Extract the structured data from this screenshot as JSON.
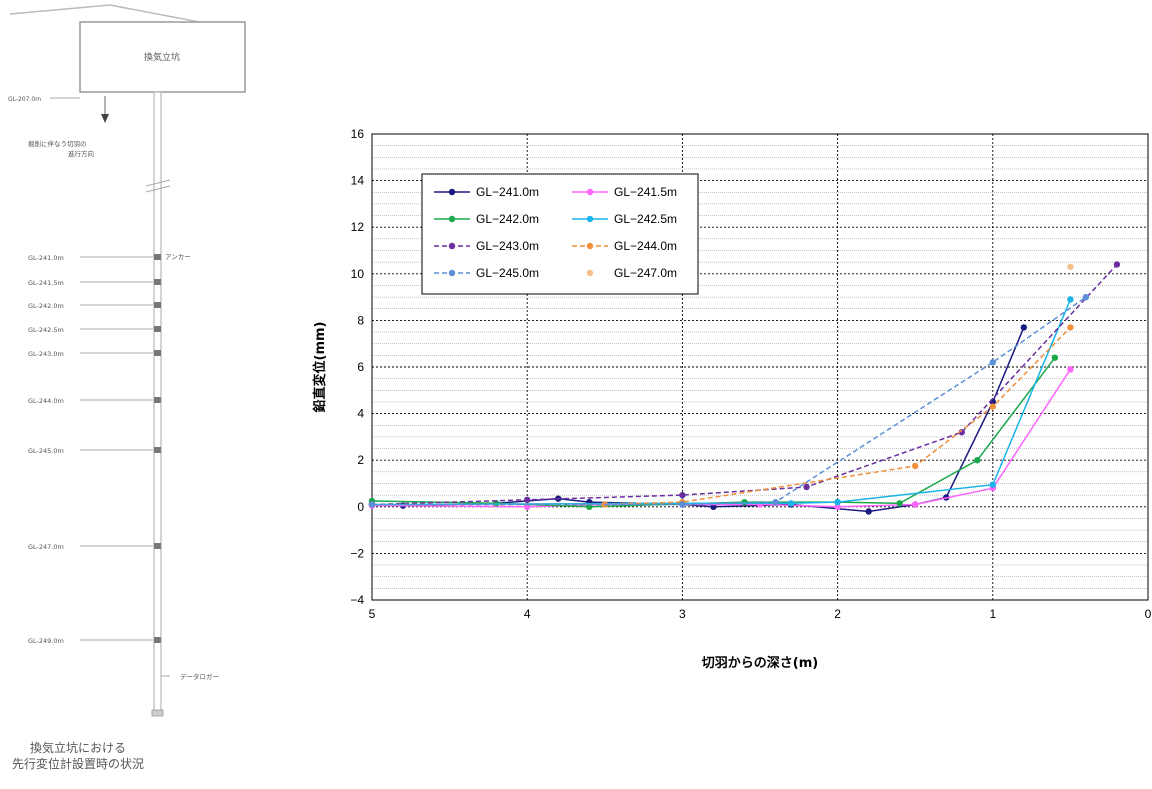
{
  "diagram": {
    "shaft_label": "換気立坑",
    "gl_top_label": "GL-207.0m",
    "direction_label_line1": "掘削に伴なう切羽の",
    "direction_label_line2": "進行方向",
    "anchor_label": "アンカー",
    "logger_label": "データロガー",
    "depth_labels": [
      "GL-241.0m",
      "GL-241.5m",
      "GL-242.0m",
      "GL-242.5m",
      "GL-243.0m",
      "GL-244.0m",
      "GL-245.0m",
      "GL-247.0m",
      "GL-249.0m"
    ],
    "caption_line1": "換気立坑における",
    "caption_line2": "先行変位計設置時の状況"
  },
  "chart_data": {
    "type": "line",
    "title": "",
    "xlabel": "切羽からの深さ(m)",
    "ylabel": "鉛直変位(mm)",
    "xlim": [
      5,
      0
    ],
    "ylim": [
      -4,
      16
    ],
    "x_ticks": [
      "5",
      "4",
      "3",
      "2",
      "1",
      "0"
    ],
    "y_ticks": [
      "16",
      "14",
      "12",
      "10",
      "8",
      "6",
      "4",
      "2",
      "0",
      "−2",
      "−4"
    ],
    "grid": true,
    "legend_position": "top-left",
    "series": [
      {
        "name": "GL−241.0m",
        "color": "#1a1a80",
        "dash": "solid",
        "points": [
          [
            5,
            0.1
          ],
          [
            4.8,
            0.05
          ],
          [
            4.2,
            0.15
          ],
          [
            3.8,
            0.35
          ],
          [
            3.6,
            0.2
          ],
          [
            3,
            0.1
          ],
          [
            2.8,
            0.0
          ],
          [
            2.3,
            0.1
          ],
          [
            1.8,
            -0.2
          ],
          [
            1.5,
            0.1
          ],
          [
            1.3,
            0.4
          ],
          [
            1,
            4.5
          ],
          [
            0.8,
            7.7
          ]
        ]
      },
      {
        "name": "GL−241.5m",
        "color": "#ff66ff",
        "dash": "solid",
        "points": [
          [
            5,
            0.05
          ],
          [
            4,
            0.0
          ],
          [
            3.5,
            0.1
          ],
          [
            3,
            0.1
          ],
          [
            2.5,
            0.1
          ],
          [
            2,
            0.0
          ],
          [
            1.5,
            0.1
          ],
          [
            1,
            0.8
          ],
          [
            0.5,
            5.9
          ]
        ]
      },
      {
        "name": "GL−242.0m",
        "color": "#1aa84a",
        "dash": "solid",
        "points": [
          [
            5,
            0.25
          ],
          [
            4.2,
            0.15
          ],
          [
            3.6,
            0.0
          ],
          [
            2.6,
            0.2
          ],
          [
            2,
            0.2
          ],
          [
            1.6,
            0.15
          ],
          [
            1.1,
            2.0
          ],
          [
            0.6,
            6.4
          ]
        ]
      },
      {
        "name": "GL−242.5m",
        "color": "#19b4e8",
        "dash": "solid",
        "points": [
          [
            5,
            0.1
          ],
          [
            3,
            0.15
          ],
          [
            2.3,
            0.15
          ],
          [
            2,
            0.2
          ],
          [
            1,
            0.95
          ],
          [
            0.5,
            8.9
          ]
        ]
      },
      {
        "name": "GL−243.0m",
        "color": "#6a2fa0",
        "dash": "dashed",
        "points": [
          [
            5,
            0.1
          ],
          [
            4,
            0.3
          ],
          [
            3,
            0.5
          ],
          [
            2.2,
            0.85
          ],
          [
            1.2,
            3.2
          ],
          [
            0.2,
            10.4
          ]
        ]
      },
      {
        "name": "GL−244.0m",
        "color": "#f0903a",
        "dash": "dashed",
        "points": [
          [
            5,
            0.1
          ],
          [
            3.5,
            0.1
          ],
          [
            3,
            0.2
          ],
          [
            1.5,
            1.75
          ],
          [
            1,
            4.3
          ],
          [
            0.5,
            7.7
          ]
        ]
      },
      {
        "name": "GL−245.0m",
        "color": "#5b8fd6",
        "dash": "dashed",
        "points": [
          [
            5,
            0.1
          ],
          [
            3,
            0.1
          ],
          [
            2.4,
            0.2
          ],
          [
            1,
            6.2
          ],
          [
            0.4,
            9.0
          ]
        ]
      },
      {
        "name": "GL−247.0m",
        "color": "#f5c08e",
        "dash": "none",
        "points": [
          [
            0.5,
            10.3
          ]
        ]
      }
    ]
  }
}
